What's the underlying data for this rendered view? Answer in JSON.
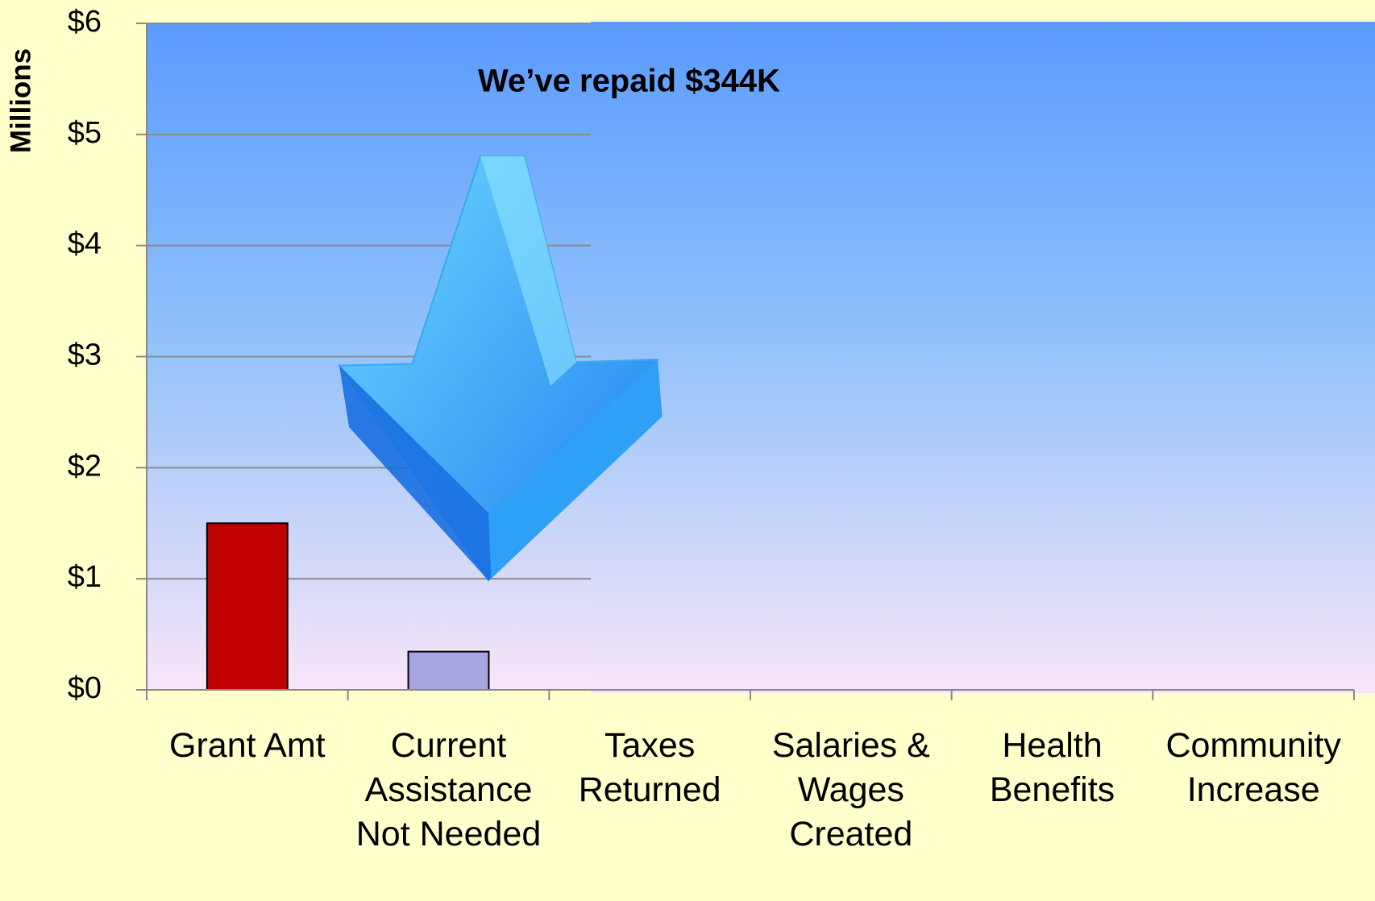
{
  "chart_data": {
    "type": "bar",
    "y_label": "Millions",
    "annotation": "We’ve repaid $344K",
    "categories": [
      "Grant Amt",
      "Current Assistance Not Needed",
      "Taxes Returned",
      "Salaries & Wages Created",
      "Health Benefits",
      "Community Increase"
    ],
    "values": [
      1.5,
      0.344,
      null,
      null,
      null,
      null
    ],
    "colors": [
      "#c00000",
      "#a5a5e0",
      null,
      null,
      null,
      null
    ],
    "ylim": [
      0,
      6
    ],
    "yticks": [
      {
        "value": 0,
        "label": "$0"
      },
      {
        "value": 1,
        "label": "$1"
      },
      {
        "value": 2,
        "label": "$2"
      },
      {
        "value": 3,
        "label": "$3"
      },
      {
        "value": 4,
        "label": "$4"
      },
      {
        "value": 5,
        "label": "$5"
      },
      {
        "value": 6,
        "label": "$6"
      }
    ],
    "grid": true
  }
}
